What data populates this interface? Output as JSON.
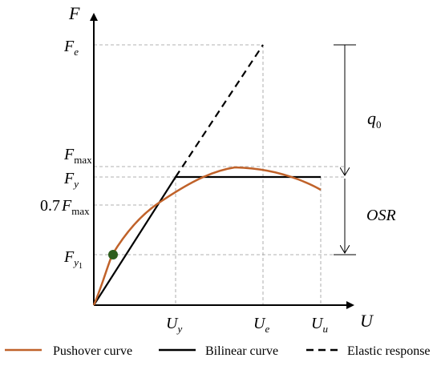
{
  "axes": {
    "x_label": "U",
    "y_label": "F"
  },
  "y_ticks": {
    "fe": {
      "base": "F",
      "sub": "e"
    },
    "fmax": {
      "base": "F",
      "sub": "max"
    },
    "fy": {
      "base": "F",
      "sub": "y"
    },
    "fmax07": {
      "prefix": "0.7",
      "base": "F",
      "sub": "max"
    },
    "fy1": {
      "base": "F",
      "sub": "y",
      "subsub": "1"
    }
  },
  "x_ticks": {
    "uy": {
      "base": "U",
      "sub": "y"
    },
    "ue": {
      "base": "U",
      "sub": "e"
    },
    "uu": {
      "base": "U",
      "sub": "u"
    }
  },
  "annotations": {
    "q0": {
      "base": "q",
      "sub": "0"
    },
    "osr": "OSR"
  },
  "legend": {
    "pushover": "Pushover curve",
    "bilinear": "Bilinear curve",
    "elastic": "Elastic response"
  },
  "colors": {
    "pushover": "#c0622a",
    "bilinear": "#000000",
    "elastic": "#000000",
    "marker": "#2e5e1e",
    "guide": "#999999"
  }
}
